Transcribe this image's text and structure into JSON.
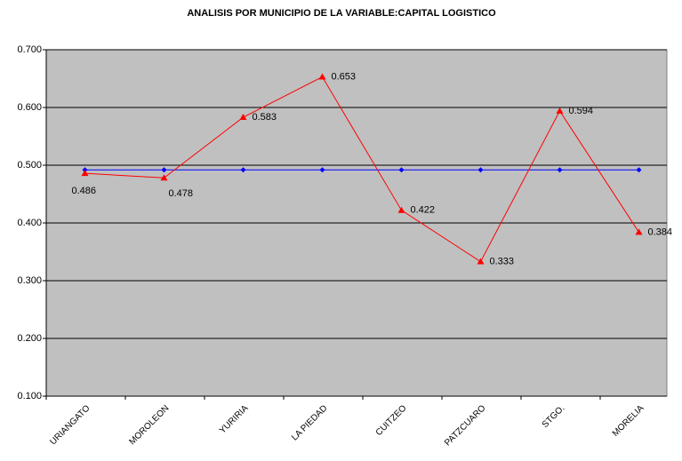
{
  "chart_data": {
    "type": "line",
    "title": "ANALISIS POR MUNICIPIO DE LA VARIABLE:CAPITAL LOGISTICO",
    "categories": [
      "URIANGATO",
      "MOROLEON",
      "YURIRIA",
      "LA PIEDAD",
      "CUITZEO",
      "PATZCUARO",
      "STGO.",
      "MORELIA"
    ],
    "series": [
      {
        "color": "#0000ff",
        "marker": "diamond",
        "values": [
          0.492,
          0.492,
          0.492,
          0.492,
          0.492,
          0.492,
          0.492,
          0.492
        ]
      },
      {
        "color": "#ff0000",
        "marker": "triangle",
        "values": [
          0.486,
          0.478,
          0.583,
          0.653,
          0.422,
          0.333,
          0.594,
          0.384
        ],
        "show_labels": true
      }
    ],
    "ylim": [
      0.1,
      0.7
    ],
    "yticks": [
      {
        "value": 0.1,
        "label": "0.100"
      },
      {
        "value": 0.2,
        "label": "0.200"
      },
      {
        "value": 0.3,
        "label": "0.300"
      },
      {
        "value": 0.4,
        "label": "0.400"
      },
      {
        "value": 0.5,
        "label": "0.500"
      },
      {
        "value": 0.6,
        "label": "0.600"
      },
      {
        "value": 0.7,
        "label": "0.700"
      }
    ],
    "grid": true
  }
}
